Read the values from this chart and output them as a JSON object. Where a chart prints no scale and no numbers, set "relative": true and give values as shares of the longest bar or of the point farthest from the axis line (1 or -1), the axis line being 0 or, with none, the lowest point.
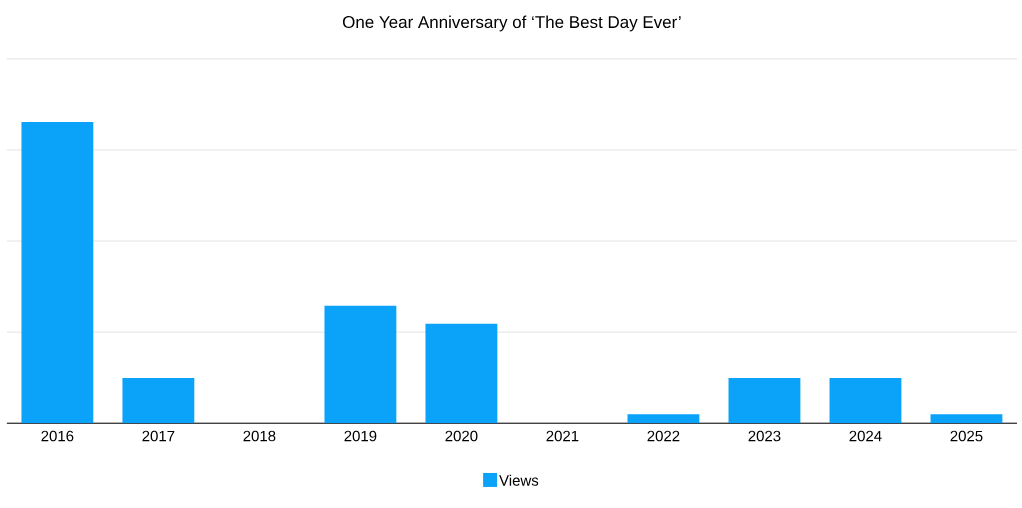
{
  "chart_data": {
    "type": "bar",
    "title": "One Year Anniversary of ‘The Best Day Ever’",
    "categories": [
      "2016",
      "2017",
      "2018",
      "2019",
      "2020",
      "2021",
      "2022",
      "2023",
      "2024",
      "2025"
    ],
    "series": [
      {
        "name": "Views",
        "color": "#0ba2fa",
        "values": [
          1,
          0.15,
          0,
          0.39,
          0.33,
          0,
          0.03,
          0.15,
          0.15,
          0.03
        ]
      }
    ],
    "relative": true,
    "grid": "y",
    "legend": "bottom"
  }
}
